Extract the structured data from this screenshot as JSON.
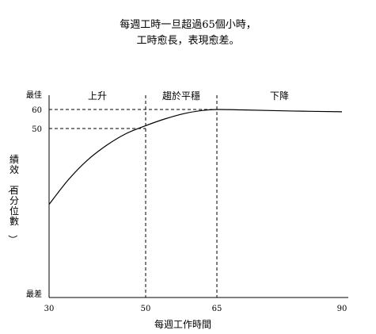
{
  "chart_data": {
    "type": "line",
    "title": "每週工時一旦超過65個小時，",
    "subtitle": "工時愈長，表現愈差。",
    "xlabel": "每週工作時間",
    "ylabel": "績效（百分位數）",
    "xlim": [
      30,
      90
    ],
    "x_ticks": [
      "30",
      "50",
      "65",
      "90"
    ],
    "y_ticks": [
      {
        "label": "最佳",
        "value": 64
      },
      {
        "label": "60",
        "value": 60
      },
      {
        "label": "50",
        "value": 50
      },
      {
        "label": "最差",
        "value": 0
      }
    ],
    "ylim": [
      0,
      64
    ],
    "regions": [
      {
        "label": "上升",
        "from": 30,
        "to": 50
      },
      {
        "label": "趨於平穩",
        "from": 50,
        "to": 65
      },
      {
        "label": "下降",
        "from": 65,
        "to": 90
      }
    ],
    "reference_lines": [
      {
        "axis": "x",
        "value": 50
      },
      {
        "axis": "x",
        "value": 65
      },
      {
        "axis": "y",
        "value": 60,
        "to_x": 65
      },
      {
        "axis": "y",
        "value": 50,
        "to_x": 50
      }
    ],
    "series": [
      {
        "points": [
          {
            "x": 30,
            "y": 27
          },
          {
            "x": 34,
            "y": 34.5
          },
          {
            "x": 38,
            "y": 40.5
          },
          {
            "x": 42,
            "y": 45
          },
          {
            "x": 46,
            "y": 48.5
          },
          {
            "x": 50,
            "y": 51.5
          },
          {
            "x": 54,
            "y": 55
          },
          {
            "x": 58,
            "y": 57.8
          },
          {
            "x": 62,
            "y": 59.5
          },
          {
            "x": 65,
            "y": 60
          },
          {
            "x": 70,
            "y": 59.8
          },
          {
            "x": 80,
            "y": 59.2
          },
          {
            "x": 90,
            "y": 58.8
          }
        ]
      }
    ]
  }
}
